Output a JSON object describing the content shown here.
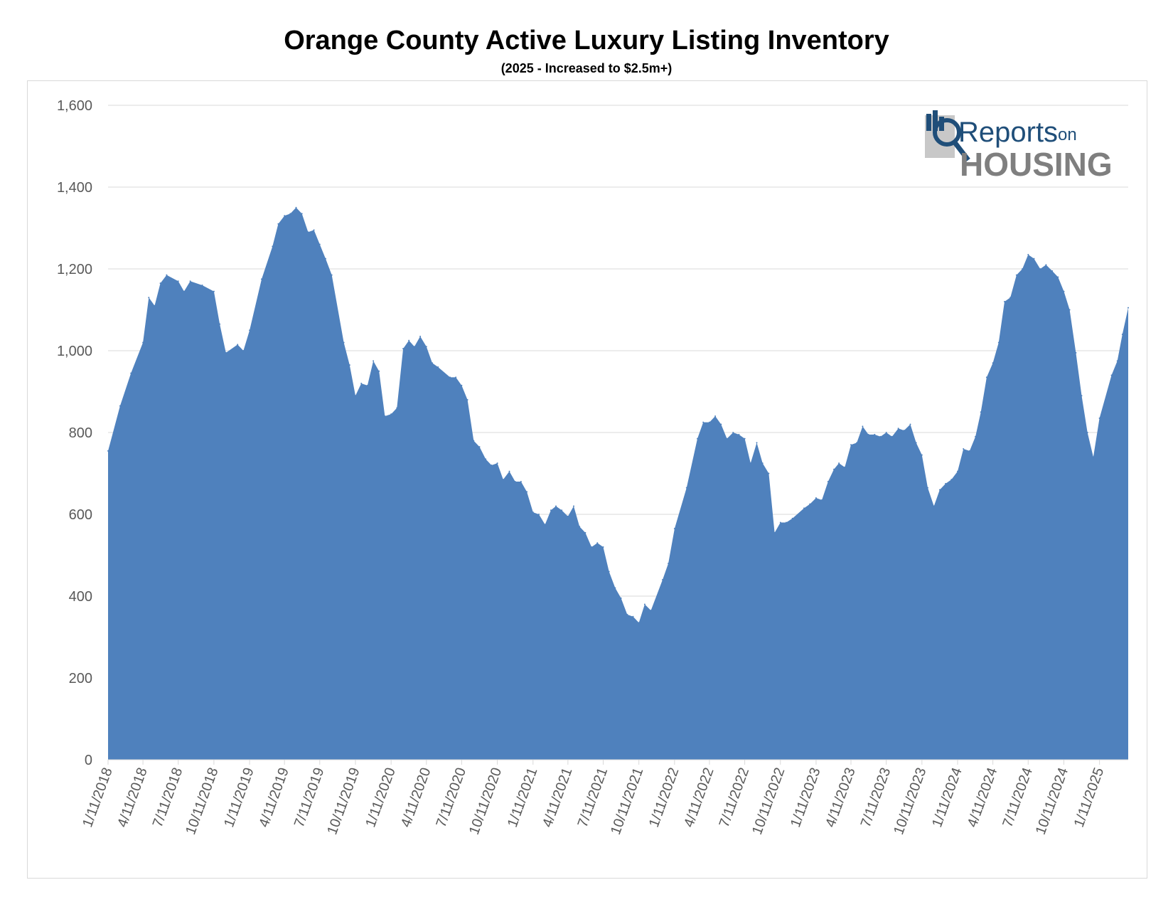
{
  "colors": {
    "area_fill": "#4f81bd",
    "gridline": "#d9d9d9",
    "axis_text": "#595959",
    "logo_blue": "#1f4e79",
    "logo_gray": "#7f7f7f"
  },
  "logo": {
    "text_reports": "Reports",
    "text_on": "on",
    "text_housing": "HOUSING",
    "icon": "magnifier-bar-chart-icon"
  },
  "chart_data": {
    "type": "area",
    "title": "Orange County Active Luxury Listing Inventory",
    "subtitle": "(2025 - Increased to $2.5m+)",
    "xlabel": "",
    "ylabel": "",
    "ylim": [
      0,
      1600
    ],
    "y_ticks": [
      "0",
      "200",
      "400",
      "600",
      "800",
      "1,000",
      "1,200",
      "1,400",
      "1,600"
    ],
    "x_tick_labels": [
      "1/11/2018",
      "4/11/2018",
      "7/11/2018",
      "10/11/2018",
      "1/11/2019",
      "4/11/2019",
      "7/11/2019",
      "10/11/2019",
      "1/11/2020",
      "4/11/2020",
      "7/11/2020",
      "10/11/2020",
      "1/11/2021",
      "4/11/2021",
      "7/11/2021",
      "10/11/2021",
      "1/11/2022",
      "4/11/2022",
      "7/11/2022",
      "10/11/2022",
      "1/11/2023",
      "4/11/2023",
      "7/11/2023",
      "10/11/2023",
      "1/11/2024",
      "4/11/2024",
      "7/11/2024",
      "10/11/2024",
      "1/11/2025"
    ],
    "grid": true,
    "legend": "none",
    "series": [
      {
        "points": [
          [
            "1/11/2018",
            755
          ],
          [
            "2/11/2018",
            865
          ],
          [
            "3/11/2018",
            945
          ],
          [
            "4/11/2018",
            1020
          ],
          [
            "4/26/2018",
            1130
          ],
          [
            "5/11/2018",
            1110
          ],
          [
            "5/26/2018",
            1165
          ],
          [
            "6/11/2018",
            1185
          ],
          [
            "7/11/2018",
            1170
          ],
          [
            "7/26/2018",
            1145
          ],
          [
            "8/11/2018",
            1170
          ],
          [
            "9/11/2018",
            1160
          ],
          [
            "10/11/2018",
            1145
          ],
          [
            "10/26/2018",
            1065
          ],
          [
            "11/11/2018",
            995
          ],
          [
            "12/11/2018",
            1015
          ],
          [
            "12/26/2018",
            1000
          ],
          [
            "1/11/2019",
            1050
          ],
          [
            "2/11/2019",
            1175
          ],
          [
            "3/11/2019",
            1255
          ],
          [
            "3/26/2019",
            1310
          ],
          [
            "4/11/2019",
            1330
          ],
          [
            "4/26/2019",
            1335
          ],
          [
            "5/11/2019",
            1350
          ],
          [
            "5/26/2019",
            1335
          ],
          [
            "6/11/2019",
            1290
          ],
          [
            "6/26/2019",
            1295
          ],
          [
            "7/11/2019",
            1260
          ],
          [
            "7/26/2019",
            1225
          ],
          [
            "8/11/2019",
            1185
          ],
          [
            "9/11/2019",
            1020
          ],
          [
            "9/26/2019",
            965
          ],
          [
            "10/11/2019",
            890
          ],
          [
            "10/26/2019",
            920
          ],
          [
            "11/11/2019",
            915
          ],
          [
            "11/26/2019",
            975
          ],
          [
            "12/11/2019",
            950
          ],
          [
            "12/26/2019",
            840
          ],
          [
            "1/11/2020",
            845
          ],
          [
            "1/26/2020",
            860
          ],
          [
            "2/11/2020",
            1005
          ],
          [
            "2/26/2020",
            1025
          ],
          [
            "3/11/2020",
            1010
          ],
          [
            "3/26/2020",
            1035
          ],
          [
            "4/11/2020",
            1010
          ],
          [
            "4/26/2020",
            970
          ],
          [
            "5/11/2020",
            960
          ],
          [
            "6/11/2020",
            935
          ],
          [
            "6/26/2020",
            935
          ],
          [
            "7/11/2020",
            915
          ],
          [
            "7/26/2020",
            880
          ],
          [
            "8/11/2020",
            780
          ],
          [
            "8/26/2020",
            765
          ],
          [
            "9/11/2020",
            735
          ],
          [
            "9/26/2020",
            720
          ],
          [
            "10/11/2020",
            725
          ],
          [
            "10/26/2020",
            685
          ],
          [
            "11/11/2020",
            705
          ],
          [
            "11/26/2020",
            680
          ],
          [
            "12/11/2020",
            680
          ],
          [
            "12/26/2020",
            655
          ],
          [
            "1/11/2021",
            605
          ],
          [
            "1/26/2021",
            600
          ],
          [
            "2/11/2021",
            575
          ],
          [
            "2/26/2021",
            610
          ],
          [
            "3/11/2021",
            620
          ],
          [
            "3/26/2021",
            610
          ],
          [
            "4/11/2021",
            595
          ],
          [
            "4/26/2021",
            620
          ],
          [
            "5/11/2021",
            570
          ],
          [
            "5/26/2021",
            555
          ],
          [
            "6/11/2021",
            520
          ],
          [
            "6/26/2021",
            530
          ],
          [
            "7/11/2021",
            520
          ],
          [
            "7/26/2021",
            460
          ],
          [
            "8/11/2021",
            420
          ],
          [
            "8/26/2021",
            395
          ],
          [
            "9/11/2021",
            355
          ],
          [
            "9/26/2021",
            350
          ],
          [
            "10/11/2021",
            335
          ],
          [
            "10/26/2021",
            380
          ],
          [
            "11/11/2021",
            365
          ],
          [
            "12/11/2021",
            440
          ],
          [
            "12/26/2021",
            480
          ],
          [
            "1/11/2022",
            565
          ],
          [
            "2/11/2022",
            665
          ],
          [
            "3/11/2022",
            785
          ],
          [
            "3/26/2022",
            825
          ],
          [
            "4/11/2022",
            825
          ],
          [
            "4/26/2022",
            840
          ],
          [
            "5/11/2022",
            820
          ],
          [
            "5/26/2022",
            785
          ],
          [
            "6/11/2022",
            800
          ],
          [
            "6/26/2022",
            795
          ],
          [
            "7/11/2022",
            785
          ],
          [
            "7/26/2022",
            725
          ],
          [
            "8/11/2022",
            775
          ],
          [
            "8/26/2022",
            725
          ],
          [
            "9/11/2022",
            700
          ],
          [
            "9/26/2022",
            555
          ],
          [
            "10/11/2022",
            580
          ],
          [
            "10/26/2022",
            580
          ],
          [
            "11/11/2022",
            590
          ],
          [
            "12/11/2022",
            615
          ],
          [
            "12/26/2022",
            625
          ],
          [
            "1/11/2023",
            640
          ],
          [
            "1/26/2023",
            635
          ],
          [
            "2/11/2023",
            680
          ],
          [
            "2/26/2023",
            710
          ],
          [
            "3/11/2023",
            725
          ],
          [
            "3/26/2023",
            715
          ],
          [
            "4/11/2023",
            770
          ],
          [
            "4/26/2023",
            775
          ],
          [
            "5/11/2023",
            815
          ],
          [
            "5/26/2023",
            795
          ],
          [
            "6/11/2023",
            795
          ],
          [
            "6/26/2023",
            790
          ],
          [
            "7/11/2023",
            800
          ],
          [
            "7/26/2023",
            790
          ],
          [
            "8/11/2023",
            810
          ],
          [
            "8/26/2023",
            805
          ],
          [
            "9/11/2023",
            820
          ],
          [
            "9/26/2023",
            775
          ],
          [
            "10/11/2023",
            745
          ],
          [
            "10/26/2023",
            665
          ],
          [
            "11/11/2023",
            620
          ],
          [
            "11/26/2023",
            660
          ],
          [
            "12/11/2023",
            675
          ],
          [
            "12/26/2023",
            685
          ],
          [
            "1/11/2024",
            705
          ],
          [
            "1/26/2024",
            760
          ],
          [
            "2/11/2024",
            755
          ],
          [
            "2/26/2024",
            790
          ],
          [
            "3/11/2024",
            850
          ],
          [
            "3/26/2024",
            935
          ],
          [
            "4/11/2024",
            970
          ],
          [
            "4/26/2024",
            1020
          ],
          [
            "5/11/2024",
            1120
          ],
          [
            "5/26/2024",
            1130
          ],
          [
            "6/11/2024",
            1185
          ],
          [
            "6/26/2024",
            1200
          ],
          [
            "7/11/2024",
            1235
          ],
          [
            "7/26/2024",
            1225
          ],
          [
            "8/11/2024",
            1200
          ],
          [
            "8/26/2024",
            1210
          ],
          [
            "9/11/2024",
            1195
          ],
          [
            "9/26/2024",
            1180
          ],
          [
            "10/11/2024",
            1145
          ],
          [
            "10/26/2024",
            1100
          ],
          [
            "11/11/2024",
            995
          ],
          [
            "11/26/2024",
            890
          ],
          [
            "12/11/2024",
            800
          ],
          [
            "12/26/2024",
            740
          ],
          [
            "1/11/2025",
            835
          ],
          [
            "2/11/2025",
            940
          ],
          [
            "2/26/2025",
            975
          ],
          [
            "3/11/2025",
            1040
          ],
          [
            "3/26/2025",
            1105
          ]
        ]
      }
    ]
  }
}
